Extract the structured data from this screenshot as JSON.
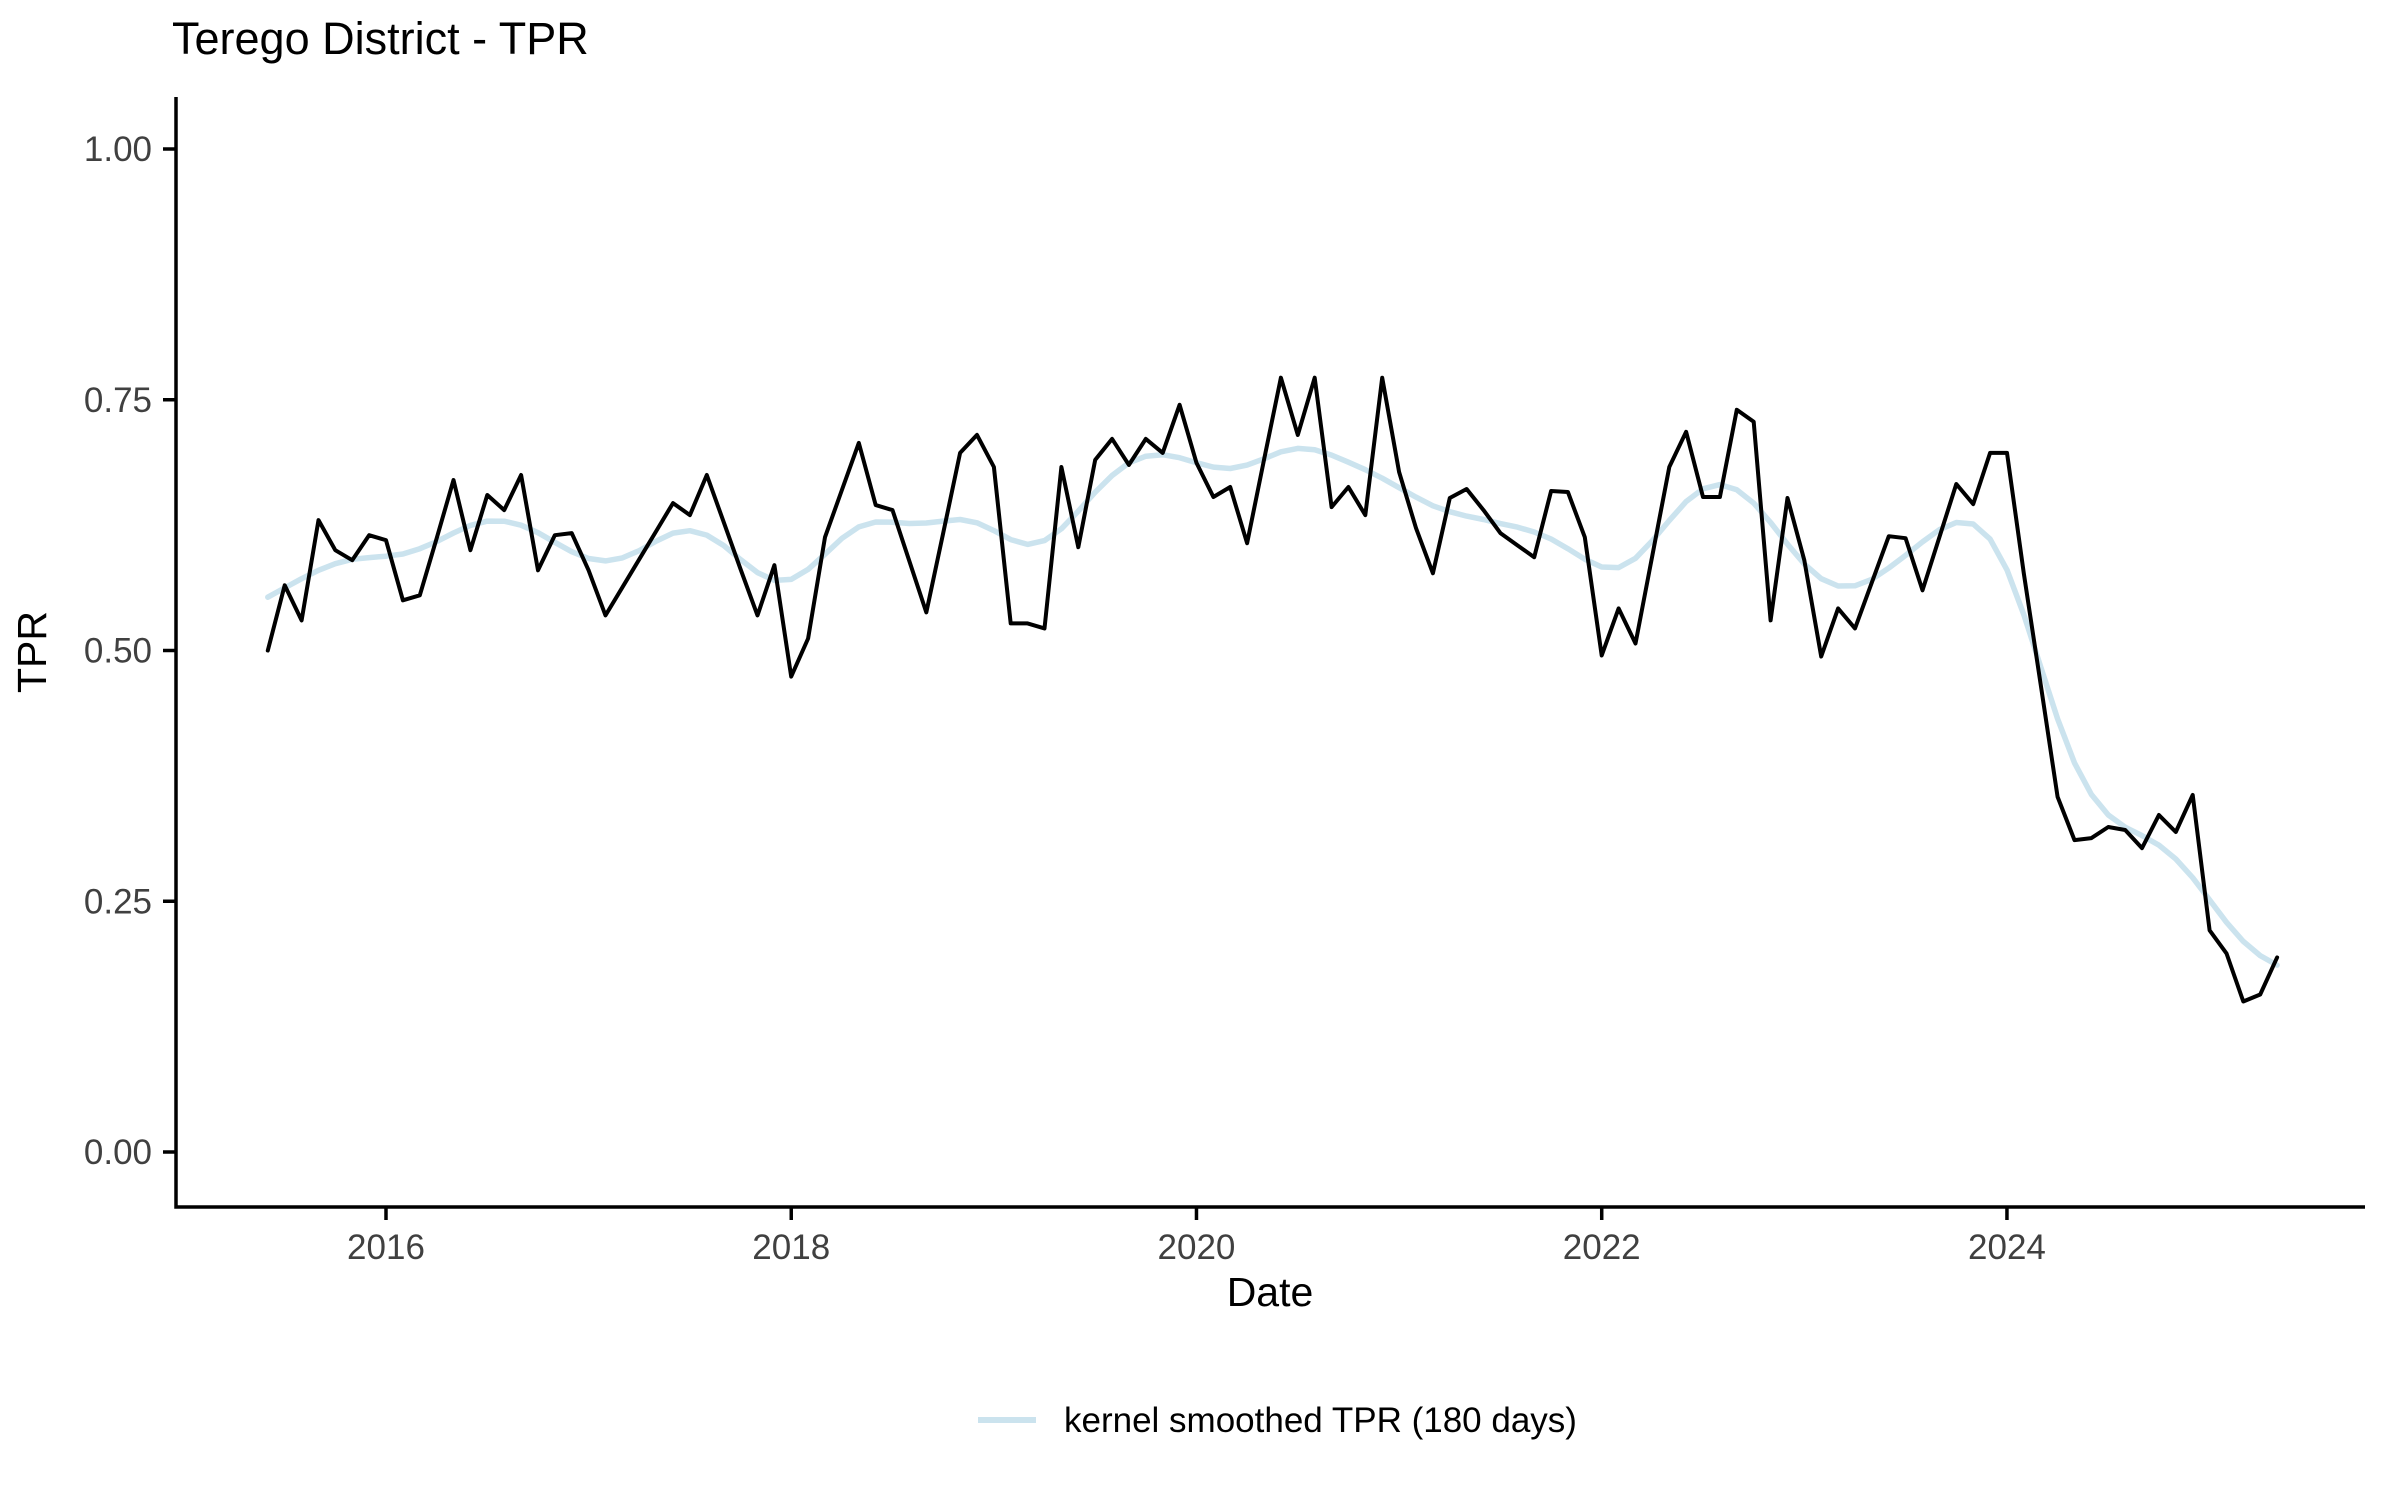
{
  "chart_data": {
    "type": "line",
    "title": "Terego District - TPR",
    "xlabel": "Date",
    "ylabel": "TPR",
    "ylim": [
      0,
      1
    ],
    "xlim_months": [
      "2015-06",
      "2025-05"
    ],
    "grid": false,
    "background_color": "#FFFFFF",
    "axis_color": "#000000",
    "tick_label_color": "#404040",
    "y_ticks": [
      0.0,
      0.25,
      0.5,
      0.75,
      1.0
    ],
    "y_tick_labels": [
      "0.00",
      "0.25",
      "0.50",
      "0.75",
      "1.00"
    ],
    "x_tick_months": [
      "2016-01",
      "2018-01",
      "2020-01",
      "2022-01",
      "2024-01"
    ],
    "x_tick_labels": [
      "2016",
      "2018",
      "2020",
      "2022",
      "2024"
    ],
    "x": [
      "2015-06",
      "2015-07",
      "2015-08",
      "2015-09",
      "2015-10",
      "2015-11",
      "2015-12",
      "2016-01",
      "2016-02",
      "2016-03",
      "2016-04",
      "2016-05",
      "2016-06",
      "2016-07",
      "2016-08",
      "2016-09",
      "2016-10",
      "2016-11",
      "2016-12",
      "2017-01",
      "2017-02",
      "2017-03",
      "2017-04",
      "2017-05",
      "2017-06",
      "2017-07",
      "2017-08",
      "2017-09",
      "2017-10",
      "2017-11",
      "2017-12",
      "2018-01",
      "2018-02",
      "2018-03",
      "2018-04",
      "2018-05",
      "2018-06",
      "2018-07",
      "2018-08",
      "2018-09",
      "2018-10",
      "2018-11",
      "2018-12",
      "2019-01",
      "2019-02",
      "2019-03",
      "2019-04",
      "2019-05",
      "2019-06",
      "2019-07",
      "2019-08",
      "2019-09",
      "2019-10",
      "2019-11",
      "2019-12",
      "2020-01",
      "2020-02",
      "2020-03",
      "2020-04",
      "2020-05",
      "2020-06",
      "2020-07",
      "2020-08",
      "2020-09",
      "2020-10",
      "2020-11",
      "2020-12",
      "2021-01",
      "2021-02",
      "2021-03",
      "2021-04",
      "2021-05",
      "2021-06",
      "2021-07",
      "2021-08",
      "2021-09",
      "2021-10",
      "2021-11",
      "2021-12",
      "2022-01",
      "2022-02",
      "2022-03",
      "2022-04",
      "2022-05",
      "2022-06",
      "2022-07",
      "2022-08",
      "2022-09",
      "2022-10",
      "2022-11",
      "2022-12",
      "2023-01",
      "2023-02",
      "2023-03",
      "2023-04",
      "2023-05",
      "2023-06",
      "2023-07",
      "2023-08",
      "2023-09",
      "2023-10",
      "2023-11",
      "2023-12",
      "2024-01",
      "2024-02",
      "2024-03",
      "2024-04",
      "2024-05",
      "2024-06",
      "2024-07",
      "2024-08",
      "2024-09",
      "2024-10",
      "2024-11",
      "2024-12",
      "2025-01",
      "2025-02",
      "2025-03",
      "2025-04",
      "2025-05"
    ],
    "series": [
      {
        "name": "TPR",
        "color": "#000000",
        "line_width": 4,
        "values": [
          0.5,
          0.565,
          0.53,
          0.63,
          0.6,
          0.59,
          0.615,
          0.61,
          0.55,
          0.555,
          0.612,
          0.67,
          0.6,
          0.655,
          0.64,
          0.675,
          0.58,
          0.615,
          0.617,
          0.58,
          0.535,
          0.563,
          0.591,
          0.619,
          0.647,
          0.635,
          0.675,
          0.628,
          0.581,
          0.535,
          0.585,
          0.474,
          0.512,
          0.613,
          0.66,
          0.707,
          0.645,
          0.64,
          0.589,
          0.538,
          0.617,
          0.697,
          0.715,
          0.683,
          0.527,
          0.527,
          0.522,
          0.683,
          0.603,
          0.69,
          0.711,
          0.685,
          0.711,
          0.697,
          0.745,
          0.687,
          0.653,
          0.663,
          0.607,
          0.69,
          0.772,
          0.715,
          0.772,
          0.643,
          0.663,
          0.635,
          0.772,
          0.678,
          0.622,
          0.577,
          0.652,
          0.661,
          0.64,
          0.617,
          0.605,
          0.593,
          0.659,
          0.658,
          0.613,
          0.495,
          0.542,
          0.507,
          0.595,
          0.683,
          0.718,
          0.653,
          0.653,
          0.74,
          0.728,
          0.53,
          0.652,
          0.59,
          0.494,
          0.542,
          0.522,
          0.568,
          0.614,
          0.612,
          0.56,
          0.613,
          0.666,
          0.646,
          0.697,
          0.697,
          0.577,
          0.466,
          0.354,
          0.311,
          0.313,
          0.324,
          0.321,
          0.303,
          0.336,
          0.319,
          0.356,
          0.221,
          0.198,
          0.15,
          0.157,
          0.194
        ]
      },
      {
        "name": "kernel smoothed TPR (180 days)",
        "color": "#CBE3EE",
        "line_width": 5.5,
        "derived_from": "TPR",
        "method": "gaussian kernel smoothing",
        "bandwidth_days": 180,
        "sigma_months": 2.5
      }
    ],
    "legend": {
      "position": "bottom-center",
      "items": [
        {
          "label": "kernel smoothed TPR (180 days)",
          "color": "#CBE3EE"
        }
      ]
    }
  }
}
